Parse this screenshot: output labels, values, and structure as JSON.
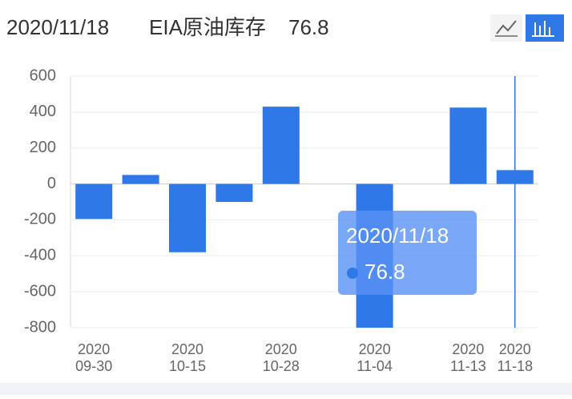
{
  "header": {
    "date": "2020/11/18",
    "name": "EIA原油库存"
  },
  "chart_data": {
    "type": "bar",
    "categories": [
      [
        "2020",
        "09-30"
      ],
      null,
      [
        "2020",
        "10-15"
      ],
      null,
      [
        "2020",
        "10-28"
      ],
      null,
      [
        "2020",
        "11-04"
      ],
      null,
      [
        "2020",
        "11-13"
      ],
      [
        "2020",
        "11-18"
      ]
    ],
    "values": [
      -195,
      50,
      -380,
      -100,
      430,
      null,
      -800,
      null,
      425,
      76.8
    ],
    "color": "#2f78e8",
    "ylim": [
      -800,
      600
    ],
    "yticks": [
      -800,
      -600,
      -400,
      -200,
      0,
      200,
      400,
      600
    ],
    "grid": true,
    "tooltip": {
      "index": 9,
      "title": "2020/11/18"
    }
  }
}
